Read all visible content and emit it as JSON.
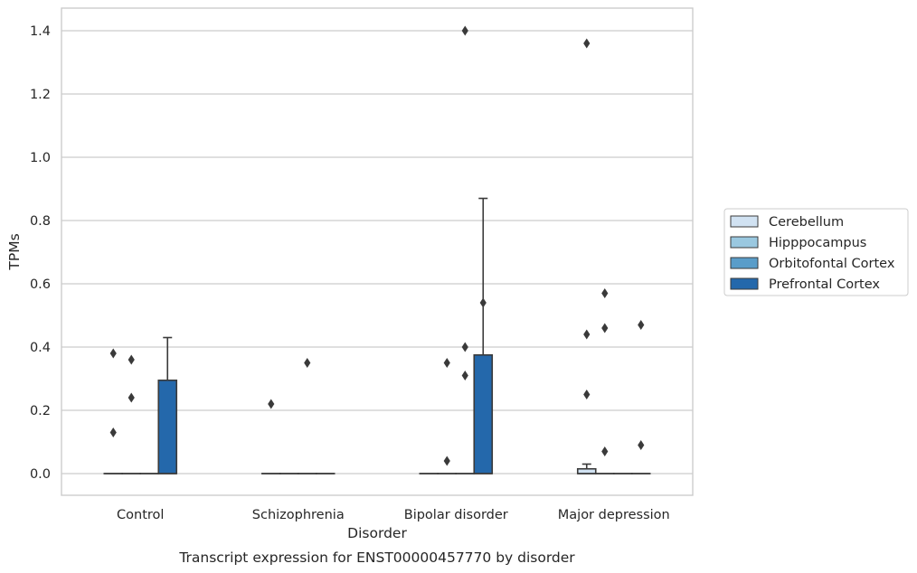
{
  "chart_data": {
    "type": "box",
    "title": "",
    "caption": "Transcript expression for ENST00000457770 by disorder",
    "xlabel": "Disorder",
    "ylabel": "TPMs",
    "ylim": [
      -0.07,
      1.47
    ],
    "yticks": [
      "0.0",
      "0.2",
      "0.4",
      "0.6",
      "0.8",
      "1.0",
      "1.2",
      "1.4"
    ],
    "grid": "horizontal",
    "legend_position": "right",
    "categories": [
      "Control",
      "Schizophrenia",
      "Bipolar disorder",
      "Major depression"
    ],
    "series": [
      {
        "name": "Cerebellum",
        "color": "#d1e2f2",
        "boxes": [
          {
            "q1": 0,
            "median": 0,
            "q3": 0,
            "whisker_low": 0,
            "whisker_high": 0,
            "outliers": [
              0.38,
              0.13
            ]
          },
          {
            "q1": 0,
            "median": 0,
            "q3": 0,
            "whisker_low": 0,
            "whisker_high": 0,
            "outliers": [
              0.22
            ]
          },
          {
            "q1": 0,
            "median": 0,
            "q3": 0,
            "whisker_low": 0,
            "whisker_high": 0,
            "outliers": []
          },
          {
            "q1": 0,
            "median": 0,
            "q3": 0.015,
            "whisker_low": 0,
            "whisker_high": 0.03,
            "outliers": [
              1.36,
              0.44,
              0.25
            ]
          }
        ]
      },
      {
        "name": "Hipppocampus",
        "color": "#9ac8e0",
        "boxes": [
          {
            "q1": 0,
            "median": 0,
            "q3": 0,
            "whisker_low": 0,
            "whisker_high": 0,
            "outliers": [
              0.36,
              0.24
            ]
          },
          {
            "q1": 0,
            "median": 0,
            "q3": 0,
            "whisker_low": 0,
            "whisker_high": 0,
            "outliers": []
          },
          {
            "q1": 0,
            "median": 0,
            "q3": 0,
            "whisker_low": 0,
            "whisker_high": 0,
            "outliers": [
              0.35,
              0.04
            ]
          },
          {
            "q1": 0,
            "median": 0,
            "q3": 0,
            "whisker_low": 0,
            "whisker_high": 0,
            "outliers": [
              0.57,
              0.46,
              0.07
            ]
          }
        ]
      },
      {
        "name": "Orbitofontal Cortex",
        "color": "#5a9dc9",
        "boxes": [
          {
            "q1": 0,
            "median": 0,
            "q3": 0,
            "whisker_low": 0,
            "whisker_high": 0,
            "outliers": []
          },
          {
            "q1": 0,
            "median": 0,
            "q3": 0,
            "whisker_low": 0,
            "whisker_high": 0,
            "outliers": [
              0.35
            ]
          },
          {
            "q1": 0,
            "median": 0,
            "q3": 0,
            "whisker_low": 0,
            "whisker_high": 0,
            "outliers": [
              1.4,
              0.4,
              0.31
            ]
          },
          {
            "q1": 0,
            "median": 0,
            "q3": 0,
            "whisker_low": 0,
            "whisker_high": 0,
            "outliers": []
          }
        ]
      },
      {
        "name": "Prefrontal Cortex",
        "color": "#2468ab",
        "boxes": [
          {
            "q1": 0,
            "median": 0,
            "q3": 0.295,
            "whisker_low": 0,
            "whisker_high": 0.43,
            "outliers": []
          },
          {
            "q1": 0,
            "median": 0,
            "q3": 0,
            "whisker_low": 0,
            "whisker_high": 0,
            "outliers": []
          },
          {
            "q1": 0,
            "median": 0,
            "q3": 0.375,
            "whisker_low": 0,
            "whisker_high": 0.87,
            "outliers": [
              0.54
            ]
          },
          {
            "q1": 0,
            "median": 0,
            "q3": 0,
            "whisker_low": 0,
            "whisker_high": 0,
            "outliers": [
              0.47,
              0.09
            ]
          }
        ]
      }
    ]
  }
}
